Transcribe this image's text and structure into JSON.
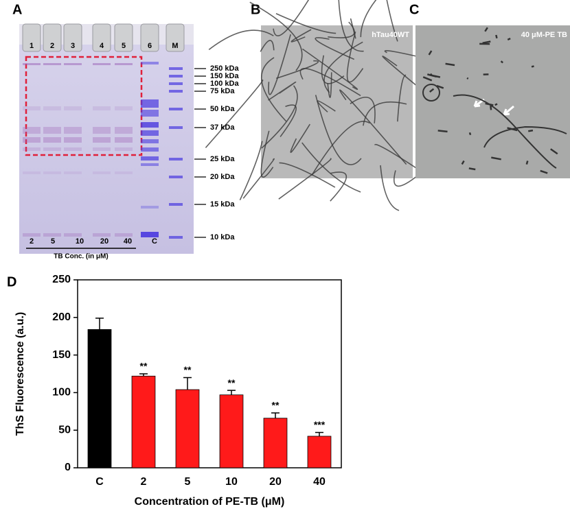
{
  "panels": {
    "a": {
      "letter": "A",
      "lanes": [
        "1",
        "2",
        "3",
        "4",
        "5",
        "6",
        "M"
      ],
      "markers": [
        "250 kDa",
        "150 kDa",
        "100 kDa",
        "75 kDa",
        "50 kDa",
        "37 kDa",
        "25 kDa",
        "20 kDa",
        "15 kDa",
        "10 kDa"
      ],
      "bottom_labels": [
        "2",
        "5",
        "10",
        "20",
        "40",
        "C"
      ],
      "caption": "TB Conc. (in μM)"
    },
    "b": {
      "letter": "B",
      "label": "hTau40WT"
    },
    "c": {
      "letter": "C",
      "label": "40 μM-PE TB"
    },
    "d": {
      "letter": "D"
    }
  },
  "chart_data": {
    "type": "bar",
    "xlabel": "Concentration of PE-TB (μM)",
    "ylabel": "ThS Fluorescence (a.u.)",
    "categories": [
      "C",
      "2",
      "5",
      "10",
      "20",
      "40"
    ],
    "values": [
      184,
      122,
      104,
      97,
      66,
      42
    ],
    "errors": [
      15,
      3,
      16,
      6,
      7,
      5
    ],
    "colors": [
      "#000000",
      "#ff1a1a",
      "#ff1a1a",
      "#ff1a1a",
      "#ff1a1a",
      "#ff1a1a"
    ],
    "significance": [
      null,
      "**",
      "**",
      "**",
      "**",
      "***"
    ],
    "ylim": [
      0,
      250
    ],
    "yticks": [
      0,
      50,
      100,
      150,
      200,
      250
    ],
    "grid": false
  }
}
